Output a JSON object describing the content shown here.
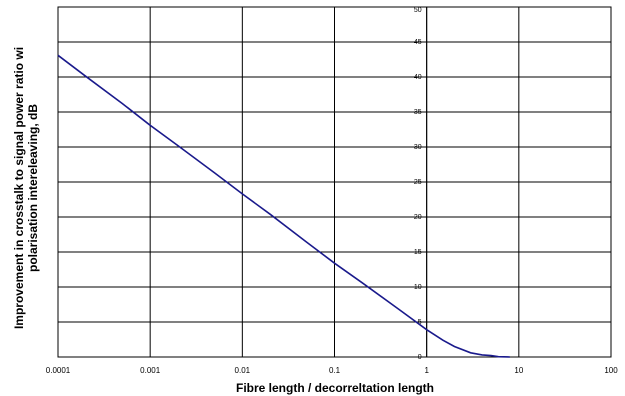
{
  "chart_data": {
    "type": "line",
    "title": "",
    "xlabel": "Fibre length / decorreltation length",
    "ylabel_line1": "Improvement in crosstalk to signal power ratio wi",
    "ylabel_line2": "polarisation intereleaving, dB",
    "x_scale": "log",
    "xlim": [
      0.0001,
      100
    ],
    "ylim": [
      0,
      50
    ],
    "x_ticks": [
      {
        "value": 0.0001,
        "label": "0.0001"
      },
      {
        "value": 0.001,
        "label": "0.001"
      },
      {
        "value": 0.01,
        "label": "0.01"
      },
      {
        "value": 0.1,
        "label": "0.1"
      },
      {
        "value": 1,
        "label": "1"
      },
      {
        "value": 10,
        "label": "10"
      },
      {
        "value": 100,
        "label": "100"
      }
    ],
    "y_ticks": [
      {
        "value": 0,
        "label": "0"
      },
      {
        "value": 5,
        "label": "5"
      },
      {
        "value": 10,
        "label": "10"
      },
      {
        "value": 15,
        "label": "15"
      },
      {
        "value": 20,
        "label": "20"
      },
      {
        "value": 25,
        "label": "25"
      },
      {
        "value": 30,
        "label": "30"
      },
      {
        "value": 35,
        "label": "35"
      },
      {
        "value": 40,
        "label": "40"
      },
      {
        "value": 45,
        "label": "45"
      },
      {
        "value": 50,
        "label": "50"
      }
    ],
    "grid": true,
    "series": [
      {
        "color": "#1a1a8c",
        "points": [
          [
            0.0001,
            43.1
          ],
          [
            0.0002,
            40.1
          ],
          [
            0.0005,
            36.2
          ],
          [
            0.001,
            33.1
          ],
          [
            0.002,
            30.2
          ],
          [
            0.005,
            26.3
          ],
          [
            0.01,
            23.3
          ],
          [
            0.02,
            20.4
          ],
          [
            0.05,
            16.4
          ],
          [
            0.1,
            13.4
          ],
          [
            0.2,
            10.6
          ],
          [
            0.5,
            6.8
          ],
          [
            1,
            3.9
          ],
          [
            1.5,
            2.4
          ],
          [
            2,
            1.5
          ],
          [
            3,
            0.6
          ],
          [
            4,
            0.3
          ],
          [
            5,
            0.2
          ],
          [
            6,
            0.05
          ],
          [
            8,
            0
          ]
        ]
      }
    ]
  }
}
